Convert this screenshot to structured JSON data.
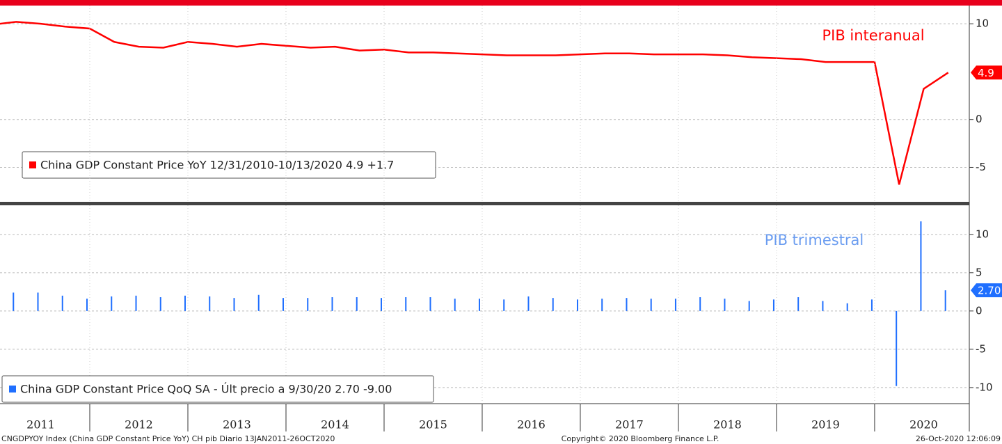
{
  "chart_data": [
    {
      "type": "line",
      "series": [
        {
          "name": "China GDP Constant Price YoY 12/31/2010-10/13/2020 4.9  +1.7",
          "color": "#ff0000",
          "x": [
            2011.0,
            2011.25,
            2011.5,
            2011.75,
            2012.0,
            2012.25,
            2012.5,
            2012.75,
            2013.0,
            2013.25,
            2013.5,
            2013.75,
            2014.0,
            2014.25,
            2014.5,
            2014.75,
            2015.0,
            2015.25,
            2015.5,
            2015.75,
            2016.0,
            2016.25,
            2016.5,
            2016.75,
            2017.0,
            2017.25,
            2017.5,
            2017.75,
            2018.0,
            2018.25,
            2018.5,
            2018.75,
            2019.0,
            2019.25,
            2019.5,
            2019.75,
            2020.0,
            2020.25,
            2020.5,
            2020.75
          ],
          "values": [
            9.9,
            10.2,
            10.0,
            9.7,
            9.5,
            8.1,
            7.6,
            7.5,
            8.1,
            7.9,
            7.6,
            7.9,
            7.7,
            7.5,
            7.6,
            7.2,
            7.3,
            7.0,
            7.0,
            6.9,
            6.8,
            6.7,
            6.7,
            6.7,
            6.8,
            6.9,
            6.9,
            6.8,
            6.8,
            6.8,
            6.7,
            6.5,
            6.4,
            6.3,
            6.0,
            6.0,
            6.0,
            -6.8,
            3.2,
            4.9
          ],
          "last_label": "4.9"
        }
      ],
      "annotation": "PIB interanual",
      "xlim": [
        2011.085,
        2020.965
      ],
      "ylim": [
        -8.6,
        11.9
      ],
      "yticks": [
        -5,
        0,
        10
      ],
      "grid": true
    },
    {
      "type": "bar",
      "series": [
        {
          "name": "China GDP Constant Price QoQ SA - Últ precio a 9/30/20 2.70  -9.00",
          "color": "#1f6fff",
          "x": [
            2011.25,
            2011.5,
            2011.75,
            2012.0,
            2012.25,
            2012.5,
            2012.75,
            2013.0,
            2013.25,
            2013.5,
            2013.75,
            2014.0,
            2014.25,
            2014.5,
            2014.75,
            2015.0,
            2015.25,
            2015.5,
            2015.75,
            2016.0,
            2016.25,
            2016.5,
            2016.75,
            2017.0,
            2017.25,
            2017.5,
            2017.75,
            2018.0,
            2018.25,
            2018.5,
            2018.75,
            2019.0,
            2019.25,
            2019.5,
            2019.75,
            2020.0,
            2020.25,
            2020.5,
            2020.75
          ],
          "values": [
            2.4,
            2.4,
            2.0,
            1.6,
            1.9,
            2.0,
            1.8,
            2.0,
            1.9,
            1.7,
            2.1,
            1.7,
            1.7,
            1.8,
            1.8,
            1.7,
            1.8,
            1.8,
            1.6,
            1.6,
            1.5,
            1.9,
            1.7,
            1.5,
            1.6,
            1.7,
            1.6,
            1.6,
            1.8,
            1.6,
            1.3,
            1.5,
            1.8,
            1.3,
            1.0,
            1.5,
            -9.8,
            11.7,
            2.7
          ],
          "last_label": "2.70"
        }
      ],
      "annotation": "PIB trimestral",
      "xlim": [
        2011.085,
        2020.965
      ],
      "xticks": [
        {
          "value": 2011.5,
          "label": "2011"
        },
        {
          "value": 2012.5,
          "label": "2012"
        },
        {
          "value": 2013.5,
          "label": "2013"
        },
        {
          "value": 2014.5,
          "label": "2014"
        },
        {
          "value": 2015.5,
          "label": "2015"
        },
        {
          "value": 2016.5,
          "label": "2016"
        },
        {
          "value": 2017.5,
          "label": "2017"
        },
        {
          "value": 2018.5,
          "label": "2018"
        },
        {
          "value": 2019.5,
          "label": "2019"
        },
        {
          "value": 2020.5,
          "label": "2020"
        }
      ],
      "ylim": [
        -12.1,
        13.8
      ],
      "yticks": [
        -10,
        -5,
        0,
        5,
        10
      ],
      "grid": true
    }
  ],
  "footer": {
    "left": "CNGDPYOY Index (China GDP Constant Price YoY) CH pib  Diario 13JAN2011-26OCT2020",
    "center": "Copyright© 2020 Bloomberg Finance L.P.",
    "right": "26-Oct-2020 12:06:09"
  }
}
